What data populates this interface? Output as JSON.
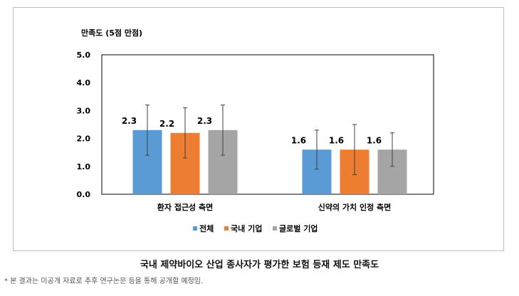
{
  "chart_data": {
    "type": "bar",
    "ylabel": "만족도 (5점 만점)",
    "ylim": [
      0,
      5
    ],
    "yticks": [
      "0.0",
      "1.0",
      "2.0",
      "3.0",
      "4.0",
      "5.0"
    ],
    "categories": [
      "환자 접근성 측면",
      "신약의 가치 인정 측면"
    ],
    "series": [
      {
        "name": "전체",
        "color": "#5b9bd5",
        "values": [
          2.3,
          1.6
        ],
        "labels": [
          "2.3",
          "1.6"
        ],
        "error_low": [
          1.4,
          0.9
        ],
        "error_high": [
          3.2,
          2.3
        ]
      },
      {
        "name": "국내 기업",
        "color": "#ed7d31",
        "values": [
          2.2,
          1.6
        ],
        "labels": [
          "2.2",
          "1.6"
        ],
        "error_low": [
          1.3,
          0.7
        ],
        "error_high": [
          3.1,
          2.5
        ]
      },
      {
        "name": "글로벌 기업",
        "color": "#a5a5a5",
        "values": [
          2.3,
          1.6
        ],
        "labels": [
          "2.3",
          "1.6"
        ],
        "error_low": [
          1.4,
          1.0
        ],
        "error_high": [
          3.2,
          2.2
        ]
      }
    ],
    "grid": false,
    "legend_position": "bottom"
  },
  "caption": "국내 제약바이오 산업 종사자가 평가한 보험 등재 제도 만족도",
  "footnote": "* 본 결과는 미공개 자료로 추후 연구논문 등을 통해 공개할 예정임."
}
